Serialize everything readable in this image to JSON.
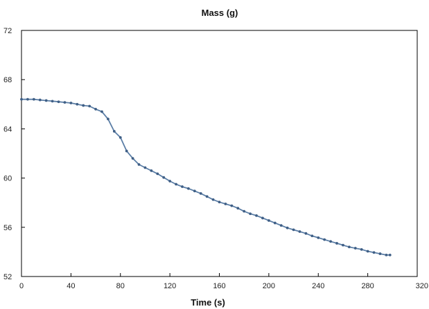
{
  "chart_data": {
    "type": "line",
    "title": "Mass (g)",
    "xlabel": "Time (s)",
    "ylabel": "",
    "xlim": [
      0,
      320
    ],
    "ylim": [
      52,
      72
    ],
    "xticks": [
      0,
      40,
      80,
      120,
      160,
      200,
      240,
      280,
      320
    ],
    "yticks": [
      52,
      56,
      60,
      64,
      68,
      72
    ],
    "grid": false,
    "legend": "none",
    "series": [
      {
        "color": "#5b7ea6",
        "marker": "dot",
        "x": [
          0,
          5,
          10,
          15,
          20,
          25,
          30,
          35,
          40,
          45,
          50,
          55,
          60,
          65,
          70,
          75,
          80,
          85,
          90,
          95,
          100,
          105,
          110,
          115,
          120,
          125,
          130,
          135,
          140,
          145,
          150,
          155,
          160,
          165,
          170,
          175,
          180,
          185,
          190,
          195,
          200,
          205,
          210,
          215,
          220,
          225,
          230,
          235,
          240,
          245,
          250,
          255,
          260,
          265,
          270,
          275,
          280,
          285,
          290,
          295,
          298
        ],
        "y": [
          66.4,
          66.4,
          66.4,
          66.35,
          66.3,
          66.25,
          66.2,
          66.15,
          66.1,
          66.0,
          65.9,
          65.85,
          65.6,
          65.4,
          64.8,
          63.8,
          63.3,
          62.2,
          61.6,
          61.1,
          60.85,
          60.6,
          60.35,
          60.05,
          59.75,
          59.5,
          59.3,
          59.15,
          58.95,
          58.75,
          58.5,
          58.25,
          58.05,
          57.9,
          57.75,
          57.55,
          57.3,
          57.1,
          56.95,
          56.75,
          56.55,
          56.35,
          56.15,
          55.95,
          55.8,
          55.65,
          55.5,
          55.3,
          55.15,
          55.0,
          54.85,
          54.7,
          54.55,
          54.4,
          54.3,
          54.2,
          54.05,
          53.95,
          53.85,
          53.75,
          53.75
        ]
      }
    ]
  }
}
